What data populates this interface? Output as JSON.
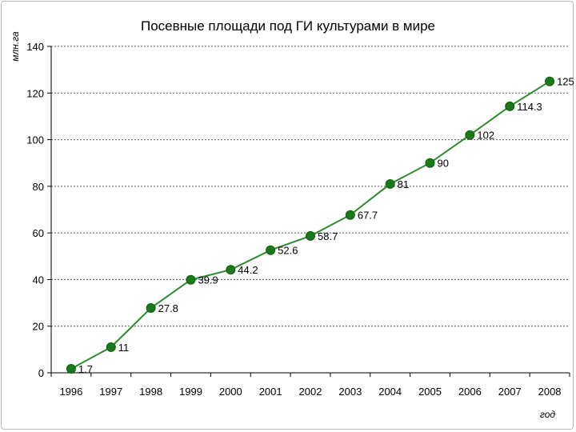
{
  "chart_data": {
    "type": "line",
    "title": "Посевные площади под ГИ культурами в мире",
    "xlabel": "год",
    "ylabel": "млн.га",
    "categories": [
      "1996",
      "1997",
      "1998",
      "1999",
      "2000",
      "2001",
      "2002",
      "2003",
      "2004",
      "2005",
      "2006",
      "2007",
      "2008"
    ],
    "series": [
      {
        "values": [
          1.7,
          11,
          27.8,
          39.9,
          44.2,
          52.6,
          58.7,
          67.7,
          81,
          90,
          102,
          114.3,
          125
        ],
        "labels": [
          "1.7",
          "11",
          "27.8",
          "39.9",
          "44.2",
          "52.6",
          "58.7",
          "67.7",
          "81",
          "90",
          "102",
          "114.3",
          "125"
        ],
        "color": "#2e8b2e",
        "marker_color": "#1a7a1a"
      }
    ],
    "ylim": [
      0,
      140
    ],
    "yticks": [
      "0",
      "20",
      "40",
      "60",
      "80",
      "100",
      "120",
      "140"
    ],
    "grid": true,
    "legend": "none"
  }
}
